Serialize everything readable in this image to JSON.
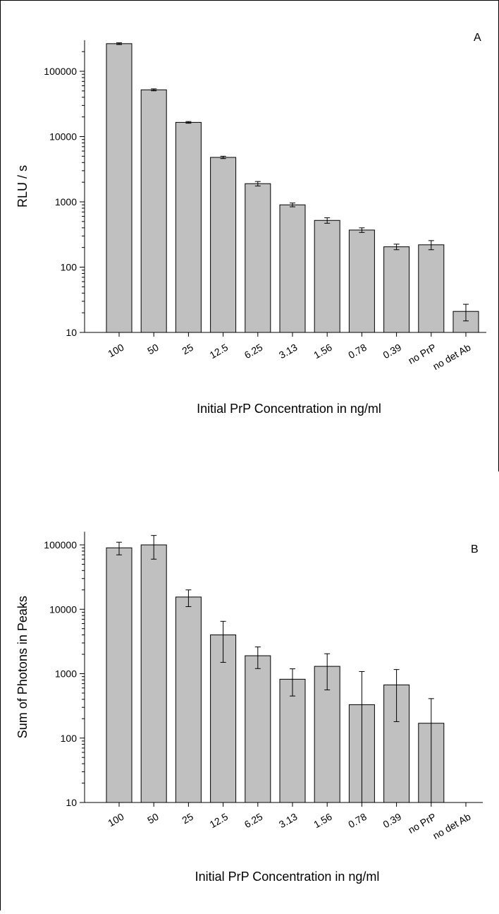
{
  "figure": {
    "frame_color": "#000000",
    "bar_fill": "#c0c0c0",
    "bar_stroke": "#000000"
  },
  "chart_data": [
    {
      "panel": "A",
      "type": "bar",
      "xlabel": "Initial PrP Concentration in ng/ml",
      "ylabel": "RLU / s",
      "ylog": true,
      "ylim": [
        10,
        300000
      ],
      "yticks": [
        10,
        100,
        1000,
        10000,
        100000
      ],
      "ytick_labels": [
        "10",
        "100",
        "1000",
        "10000",
        "100000"
      ],
      "categories": [
        "100",
        "50",
        "25",
        "12.5",
        "6.25",
        "3.13",
        "1.56",
        "0.78",
        "0.39",
        "no PrP",
        "no det Ab"
      ],
      "values": [
        265000,
        52000,
        16500,
        4800,
        1900,
        900,
        520,
        370,
        205,
        220,
        21
      ],
      "errors": [
        8000,
        1800,
        500,
        200,
        150,
        60,
        50,
        30,
        20,
        35,
        6
      ]
    },
    {
      "panel": "B",
      "type": "bar",
      "xlabel": "Initial PrP Concentration in ng/ml",
      "ylabel": "Sum of Photons in Peaks",
      "ylog": true,
      "ylim": [
        10,
        160000
      ],
      "yticks": [
        10,
        100,
        1000,
        10000,
        100000
      ],
      "ytick_labels": [
        "10",
        "100",
        "1000",
        "10000",
        "100000"
      ],
      "categories": [
        "100",
        "50",
        "25",
        "12.5",
        "6.25",
        "3.13",
        "1.56",
        "0.78",
        "0.39",
        "no PrP",
        "no det Ab"
      ],
      "values": [
        90000,
        100000,
        15500,
        4000,
        1900,
        820,
        1300,
        330,
        670,
        170,
        10
      ],
      "errors": [
        20000,
        40000,
        4500,
        2500,
        700,
        370,
        740,
        750,
        490,
        240,
        0
      ]
    }
  ]
}
